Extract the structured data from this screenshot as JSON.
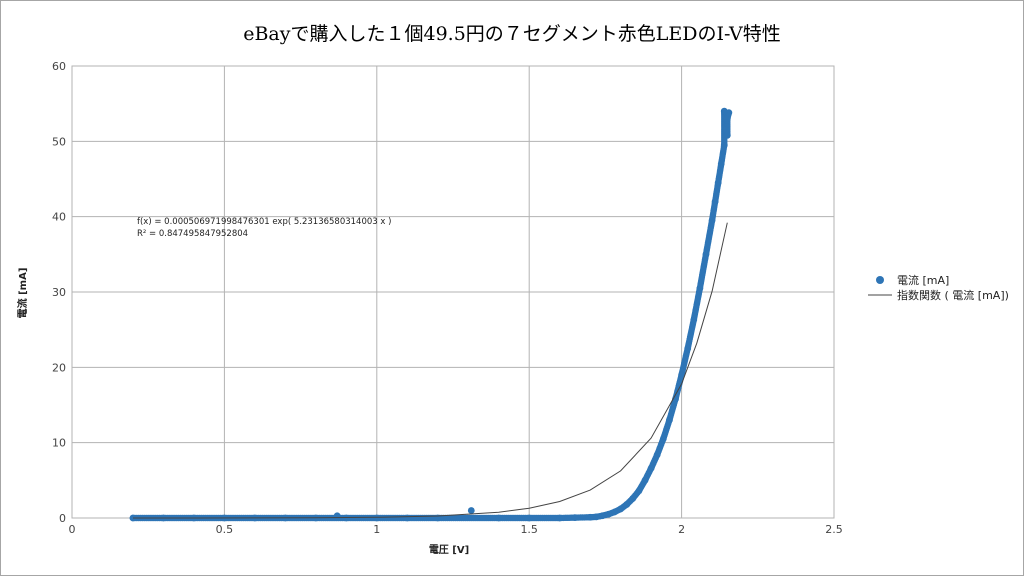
{
  "chart_data": {
    "type": "scatter",
    "title": "eBayで購入した１個49.5円の７セグメント赤色LEDのI-V特性",
    "xlabel": "電圧 [V]",
    "ylabel": "電流 [mA]",
    "xlim": [
      0,
      2.5
    ],
    "ylim": [
      0,
      60
    ],
    "x_ticks": [
      "0",
      "0.5",
      "1",
      "1.5",
      "2",
      "2.5"
    ],
    "y_ticks": [
      "0",
      "10",
      "20",
      "30",
      "40",
      "50",
      "60"
    ],
    "grid": true,
    "legend_position": "right",
    "colors": {
      "series_points": "#2e75b6",
      "trendline": "#444444",
      "grid": "#b3b3b3"
    },
    "series": [
      {
        "name": "電流 [mA]",
        "kind": "scatter",
        "x": [
          0.2,
          0.3,
          0.4,
          0.5,
          0.6,
          0.7,
          0.8,
          0.87,
          0.9,
          1.0,
          1.1,
          1.2,
          1.31,
          1.4,
          1.5,
          1.6,
          1.65,
          1.7,
          1.72,
          1.74,
          1.76,
          1.78,
          1.8,
          1.82,
          1.84,
          1.86,
          1.88,
          1.9,
          1.92,
          1.94,
          1.96,
          1.98,
          2.0,
          2.02,
          2.04,
          2.06,
          2.08,
          2.1,
          2.11,
          2.12,
          2.13,
          2.14,
          2.145,
          2.15,
          2.155,
          2.14,
          2.15
        ],
        "y": [
          0.0,
          0.0,
          0.0,
          0.0,
          0.0,
          0.0,
          0.0,
          0.3,
          0.0,
          0.0,
          0.0,
          0.0,
          1.0,
          0.0,
          0.0,
          0.0,
          0.05,
          0.1,
          0.15,
          0.3,
          0.5,
          0.8,
          1.2,
          1.8,
          2.6,
          3.6,
          5.0,
          6.6,
          8.4,
          10.5,
          13.0,
          15.8,
          19.0,
          22.5,
          26.3,
          30.5,
          35.0,
          39.5,
          42.0,
          44.5,
          47.0,
          49.5,
          51.5,
          53.0,
          53.8,
          54.0,
          50.8
        ]
      },
      {
        "name": "指数関数 ( 電流 [mA])",
        "kind": "trendline",
        "x": [
          0.2,
          0.4,
          0.6,
          0.8,
          1.0,
          1.2,
          1.4,
          1.5,
          1.6,
          1.7,
          1.8,
          1.9,
          2.0,
          2.05,
          2.1,
          2.15
        ],
        "y": [
          0.0015,
          0.0041,
          0.0117,
          0.0333,
          0.095,
          0.27,
          0.769,
          1.3,
          2.19,
          3.7,
          6.25,
          10.6,
          17.8,
          23.2,
          30.1,
          39.2
        ]
      }
    ],
    "annotations": [
      "f(x) = 0.000506971998476301 exp( 5.23136580314003 x )",
      "R² = 0.847495847952804"
    ]
  }
}
